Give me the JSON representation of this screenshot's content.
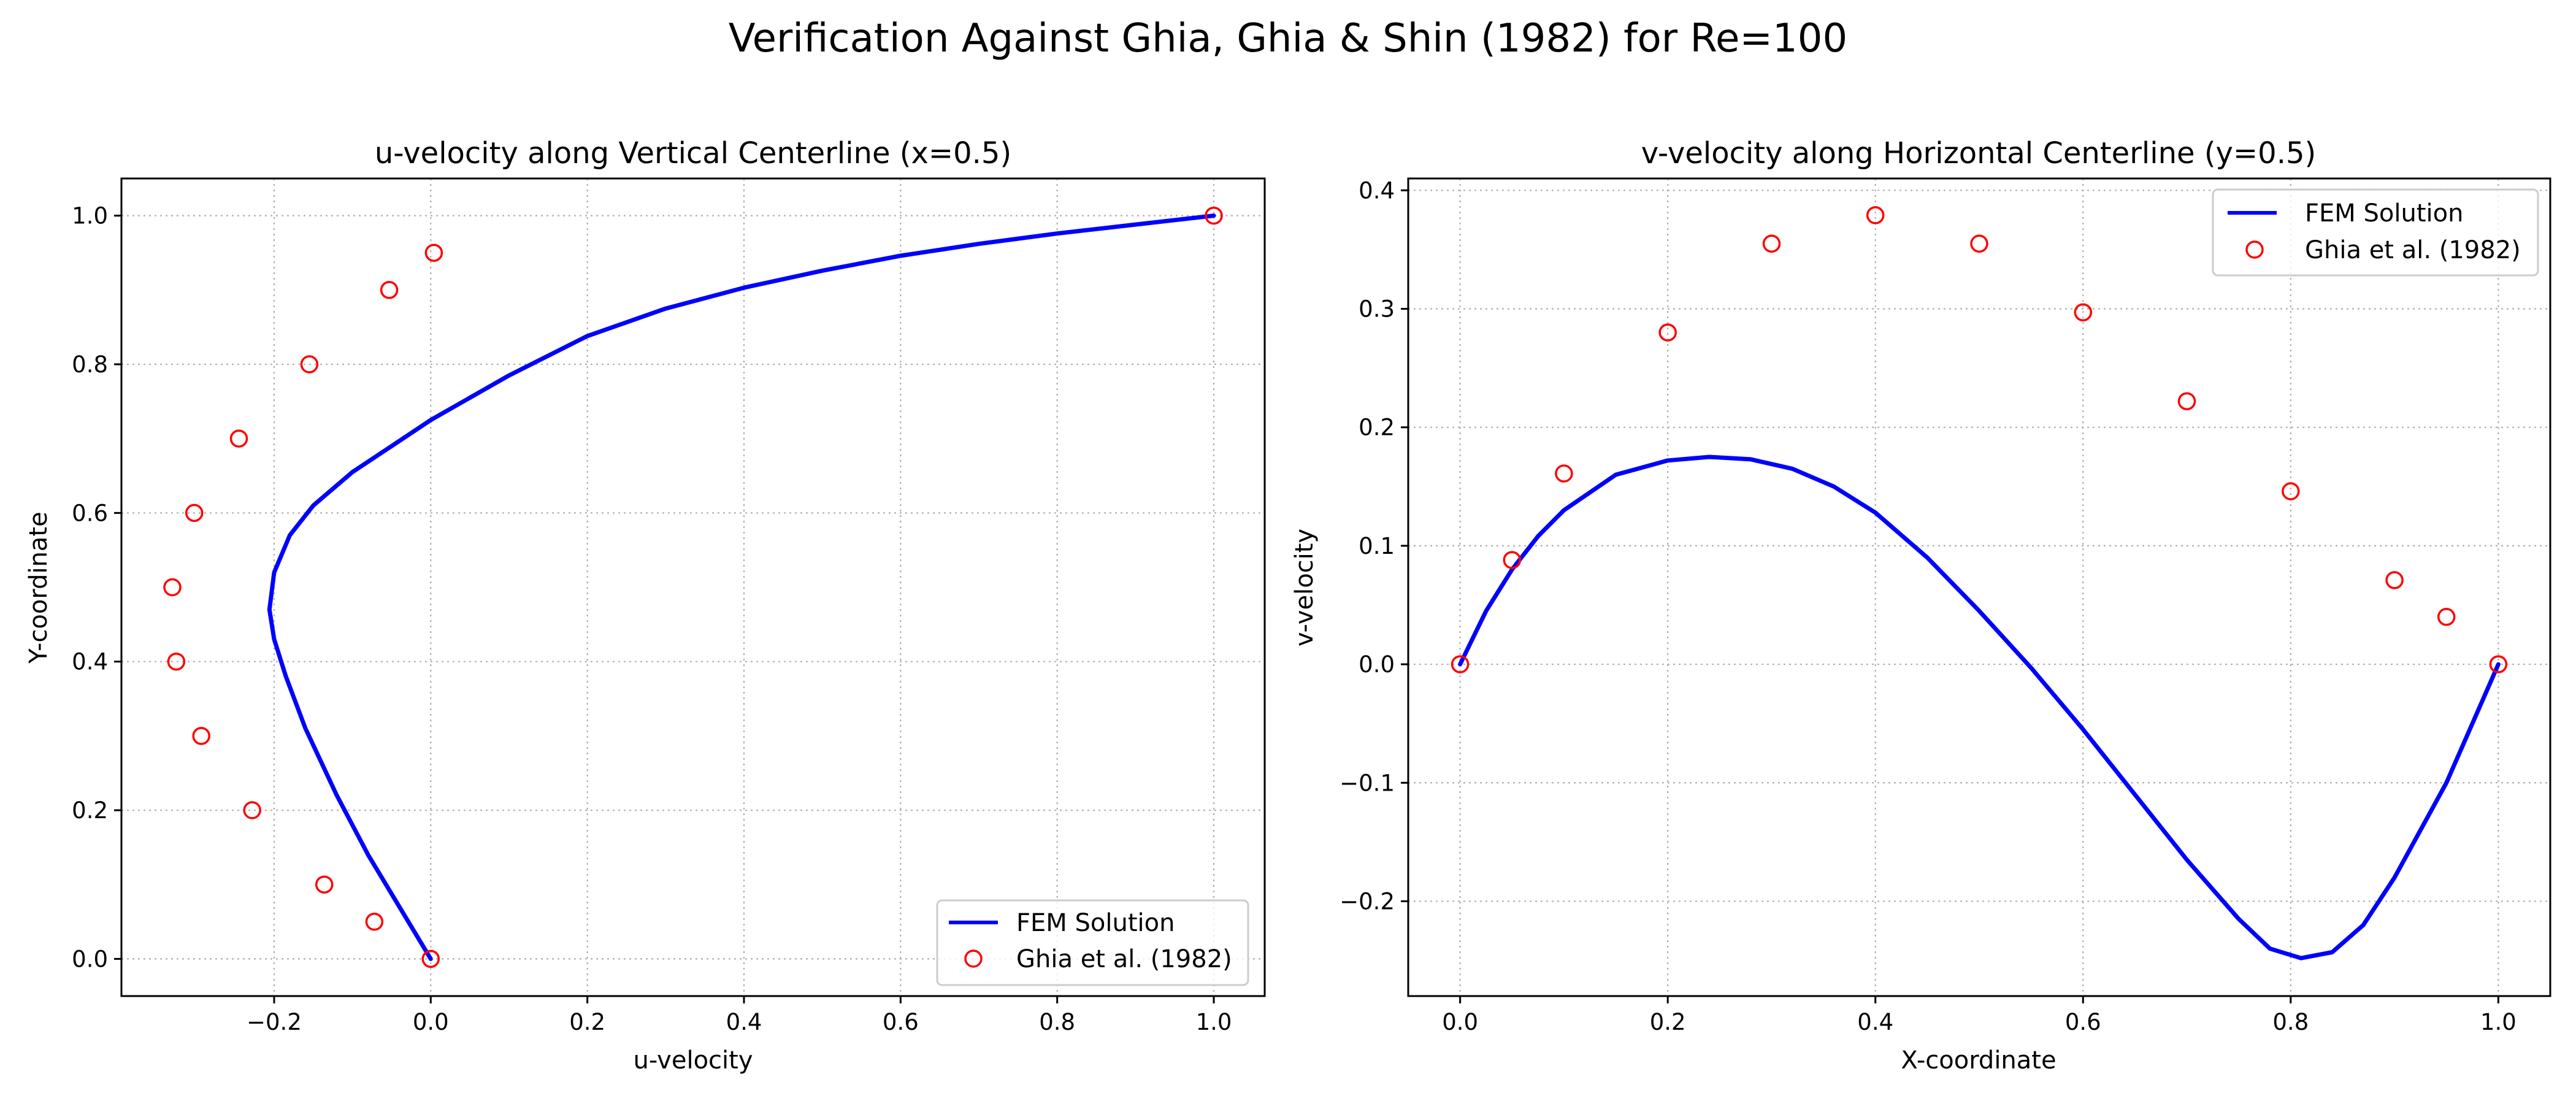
{
  "suptitle": "Verification Against Ghia, Ghia & Shin (1982) for Re=100",
  "chart_data": [
    {
      "type": "line",
      "title": "u-velocity along Vertical Centerline (x=0.5)",
      "xlabel": "u-velocity",
      "ylabel": "Y-coordinate",
      "xlim": [
        -0.395,
        1.065
      ],
      "ylim": [
        -0.05,
        1.05
      ],
      "xticks": [
        -0.2,
        0.0,
        0.2,
        0.4,
        0.6,
        0.8,
        1.0
      ],
      "yticks": [
        0.0,
        0.2,
        0.4,
        0.6,
        0.8,
        1.0
      ],
      "xtick_labels": [
        "−0.2",
        "0.0",
        "0.2",
        "0.4",
        "0.6",
        "0.8",
        "1.0"
      ],
      "ytick_labels": [
        "0.0",
        "0.2",
        "0.4",
        "0.6",
        "0.8",
        "1.0"
      ],
      "grid": true,
      "legend_position": "lower right",
      "series": [
        {
          "name": "FEM Solution",
          "style": "line",
          "color": "#0000ff",
          "points": [
            [
              0.0,
              0.0
            ],
            [
              -0.04,
              0.07
            ],
            [
              -0.08,
              0.14
            ],
            [
              -0.12,
              0.22
            ],
            [
              -0.16,
              0.31
            ],
            [
              -0.185,
              0.38
            ],
            [
              -0.2,
              0.43
            ],
            [
              -0.206,
              0.47
            ],
            [
              -0.2,
              0.52
            ],
            [
              -0.18,
              0.57
            ],
            [
              -0.15,
              0.61
            ],
            [
              -0.1,
              0.655
            ],
            [
              -0.05,
              0.69
            ],
            [
              0.0,
              0.725
            ],
            [
              0.1,
              0.785
            ],
            [
              0.2,
              0.838
            ],
            [
              0.3,
              0.875
            ],
            [
              0.4,
              0.903
            ],
            [
              0.5,
              0.926
            ],
            [
              0.6,
              0.946
            ],
            [
              0.7,
              0.962
            ],
            [
              0.8,
              0.976
            ],
            [
              0.9,
              0.988
            ],
            [
              1.0,
              1.0
            ]
          ]
        },
        {
          "name": "Ghia et al. (1982)",
          "style": "marker",
          "color": "#ff0000",
          "points": [
            [
              0.0,
              0.0
            ],
            [
              -0.072,
              0.05
            ],
            [
              -0.136,
              0.1
            ],
            [
              -0.228,
              0.2
            ],
            [
              -0.293,
              0.3
            ],
            [
              -0.325,
              0.4
            ],
            [
              -0.33,
              0.5
            ],
            [
              -0.302,
              0.6
            ],
            [
              -0.245,
              0.7
            ],
            [
              -0.155,
              0.8
            ],
            [
              -0.053,
              0.9
            ],
            [
              0.004,
              0.95
            ],
            [
              1.0,
              1.0
            ]
          ]
        }
      ]
    },
    {
      "type": "line",
      "title": "v-velocity along Horizontal Centerline (y=0.5)",
      "xlabel": "X-coordinate",
      "ylabel": "v-velocity",
      "xlim": [
        -0.05,
        1.05
      ],
      "ylim": [
        -0.28,
        0.41
      ],
      "xticks": [
        0.0,
        0.2,
        0.4,
        0.6,
        0.8,
        1.0
      ],
      "yticks": [
        -0.2,
        -0.1,
        0.0,
        0.1,
        0.2,
        0.3,
        0.4
      ],
      "xtick_labels": [
        "0.0",
        "0.2",
        "0.4",
        "0.6",
        "0.8",
        "1.0"
      ],
      "ytick_labels": [
        "−0.2",
        "−0.1",
        "0.0",
        "0.1",
        "0.2",
        "0.3",
        "0.4"
      ],
      "grid": true,
      "legend_position": "upper right",
      "series": [
        {
          "name": "FEM Solution",
          "style": "line",
          "color": "#0000ff",
          "points": [
            [
              0.0,
              0.0
            ],
            [
              0.025,
              0.045
            ],
            [
              0.05,
              0.08
            ],
            [
              0.075,
              0.108
            ],
            [
              0.1,
              0.13
            ],
            [
              0.15,
              0.16
            ],
            [
              0.2,
              0.172
            ],
            [
              0.24,
              0.175
            ],
            [
              0.28,
              0.173
            ],
            [
              0.32,
              0.165
            ],
            [
              0.36,
              0.15
            ],
            [
              0.4,
              0.128
            ],
            [
              0.45,
              0.09
            ],
            [
              0.5,
              0.045
            ],
            [
              0.55,
              -0.003
            ],
            [
              0.6,
              -0.055
            ],
            [
              0.65,
              -0.11
            ],
            [
              0.7,
              -0.165
            ],
            [
              0.75,
              -0.215
            ],
            [
              0.78,
              -0.24
            ],
            [
              0.81,
              -0.248
            ],
            [
              0.84,
              -0.243
            ],
            [
              0.87,
              -0.22
            ],
            [
              0.9,
              -0.18
            ],
            [
              0.95,
              -0.1
            ],
            [
              1.0,
              0.0
            ]
          ]
        },
        {
          "name": "Ghia et al. (1982)",
          "style": "marker",
          "color": "#ff0000",
          "points": [
            [
              0.0,
              0.0
            ],
            [
              0.05,
              0.088
            ],
            [
              0.1,
              0.161
            ],
            [
              0.2,
              0.28
            ],
            [
              0.3,
              0.355
            ],
            [
              0.4,
              0.379
            ],
            [
              0.5,
              0.355
            ],
            [
              0.6,
              0.297
            ],
            [
              0.7,
              0.222
            ],
            [
              0.8,
              0.146
            ],
            [
              0.9,
              0.071
            ],
            [
              0.95,
              0.04
            ],
            [
              1.0,
              0.0
            ]
          ]
        }
      ]
    }
  ]
}
